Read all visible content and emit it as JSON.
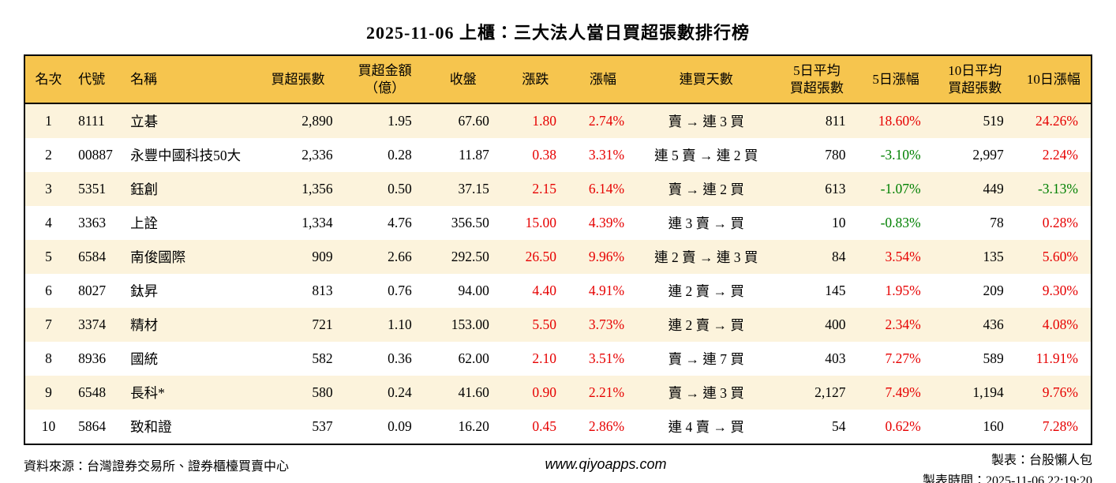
{
  "title": "2025-11-06 上櫃：三大法人當日買超張數排行榜",
  "colors": {
    "header_bg": "#F6C54E",
    "row_alt_bg": "#FCF3DC",
    "positive": "#E60000",
    "negative": "#008000"
  },
  "table": {
    "headers": [
      "名次",
      "代號",
      "名稱",
      "買超張數",
      "買超金額\n（億）",
      "收盤",
      "漲跌",
      "漲幅",
      "連買天數",
      "5日平均\n買超張數",
      "5日漲幅",
      "10日平均\n買超張數",
      "10日漲幅"
    ],
    "rows": [
      {
        "rank": "1",
        "code": "8111",
        "name": "立碁",
        "net_buy": "2,890",
        "net_amount": "1.95",
        "close": "67.60",
        "change": "1.80",
        "change_pct": "2.74%",
        "streak": "賣 → 連 3 買",
        "avg5": "811",
        "pct5": "18.60%",
        "avg10": "519",
        "pct10": "24.26%"
      },
      {
        "rank": "2",
        "code": "00887",
        "name": "永豐中國科技50大",
        "net_buy": "2,336",
        "net_amount": "0.28",
        "close": "11.87",
        "change": "0.38",
        "change_pct": "3.31%",
        "streak": "連 5 賣 → 連 2 買",
        "avg5": "780",
        "pct5": "-3.10%",
        "avg10": "2,997",
        "pct10": "2.24%"
      },
      {
        "rank": "3",
        "code": "5351",
        "name": "鈺創",
        "net_buy": "1,356",
        "net_amount": "0.50",
        "close": "37.15",
        "change": "2.15",
        "change_pct": "6.14%",
        "streak": "賣 → 連 2 買",
        "avg5": "613",
        "pct5": "-1.07%",
        "avg10": "449",
        "pct10": "-3.13%"
      },
      {
        "rank": "4",
        "code": "3363",
        "name": "上詮",
        "net_buy": "1,334",
        "net_amount": "4.76",
        "close": "356.50",
        "change": "15.00",
        "change_pct": "4.39%",
        "streak": "連 3 賣 → 買",
        "avg5": "10",
        "pct5": "-0.83%",
        "avg10": "78",
        "pct10": "0.28%"
      },
      {
        "rank": "5",
        "code": "6584",
        "name": "南俊國際",
        "net_buy": "909",
        "net_amount": "2.66",
        "close": "292.50",
        "change": "26.50",
        "change_pct": "9.96%",
        "streak": "連 2 賣 → 連 3 買",
        "avg5": "84",
        "pct5": "3.54%",
        "avg10": "135",
        "pct10": "5.60%"
      },
      {
        "rank": "6",
        "code": "8027",
        "name": "鈦昇",
        "net_buy": "813",
        "net_amount": "0.76",
        "close": "94.00",
        "change": "4.40",
        "change_pct": "4.91%",
        "streak": "連 2 賣 → 買",
        "avg5": "145",
        "pct5": "1.95%",
        "avg10": "209",
        "pct10": "9.30%"
      },
      {
        "rank": "7",
        "code": "3374",
        "name": "精材",
        "net_buy": "721",
        "net_amount": "1.10",
        "close": "153.00",
        "change": "5.50",
        "change_pct": "3.73%",
        "streak": "連 2 賣 → 買",
        "avg5": "400",
        "pct5": "2.34%",
        "avg10": "436",
        "pct10": "4.08%"
      },
      {
        "rank": "8",
        "code": "8936",
        "name": "國統",
        "net_buy": "582",
        "net_amount": "0.36",
        "close": "62.00",
        "change": "2.10",
        "change_pct": "3.51%",
        "streak": "賣 → 連 7 買",
        "avg5": "403",
        "pct5": "7.27%",
        "avg10": "589",
        "pct10": "11.91%"
      },
      {
        "rank": "9",
        "code": "6548",
        "name": "長科*",
        "net_buy": "580",
        "net_amount": "0.24",
        "close": "41.60",
        "change": "0.90",
        "change_pct": "2.21%",
        "streak": "賣 → 連 3 買",
        "avg5": "2,127",
        "pct5": "7.49%",
        "avg10": "1,194",
        "pct10": "9.76%"
      },
      {
        "rank": "10",
        "code": "5864",
        "name": "致和證",
        "net_buy": "537",
        "net_amount": "0.09",
        "close": "16.20",
        "change": "0.45",
        "change_pct": "2.86%",
        "streak": "連 4 賣 → 買",
        "avg5": "54",
        "pct5": "0.62%",
        "avg10": "160",
        "pct10": "7.28%"
      }
    ]
  },
  "footer": {
    "source": "資料來源：台灣證券交易所、證券櫃檯買賣中心",
    "website": "www.qiyoapps.com",
    "creator": "製表：台股懶人包",
    "created_at": "製表時間：2025-11-06 22:19:20"
  }
}
